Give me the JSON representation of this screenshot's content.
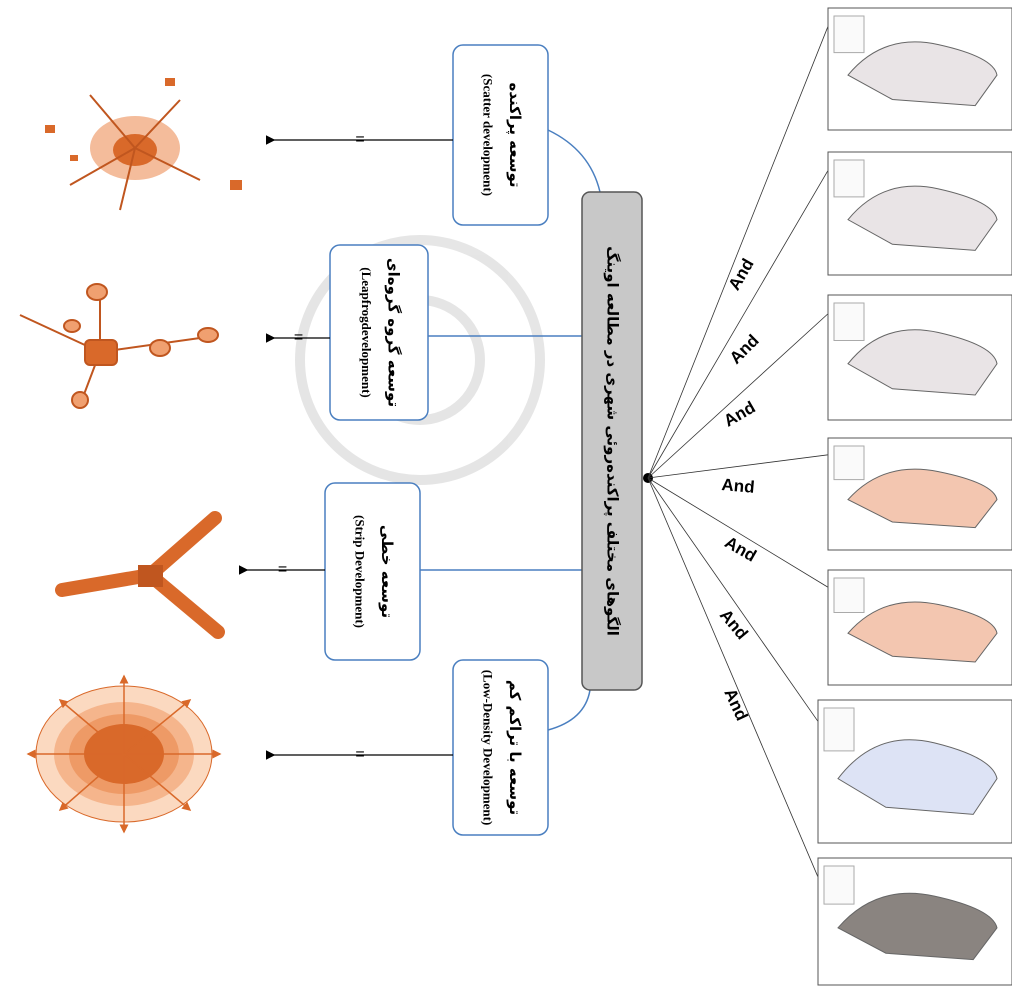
{
  "center": {
    "title": "الگوهای مختلف پراکنده‌روئی شهری در مطالعه اوینگ"
  },
  "boxes": [
    {
      "title": "توسعه پراکنده",
      "subtitle": "(Scatter development)"
    },
    {
      "title": "توسعه گروه گروه‌ای",
      "subtitle": "(Leapfrogdevelopment)"
    },
    {
      "title": "توسعه خطی",
      "subtitle": "(Strip Development)"
    },
    {
      "title": "توسعه با تراکم کم",
      "subtitle": "(Low-Density Development)"
    }
  ],
  "equals": [
    "=",
    "=",
    "=",
    "="
  ],
  "and_labels": [
    "And",
    "And",
    "And",
    "And",
    "And",
    "And",
    "And"
  ]
}
